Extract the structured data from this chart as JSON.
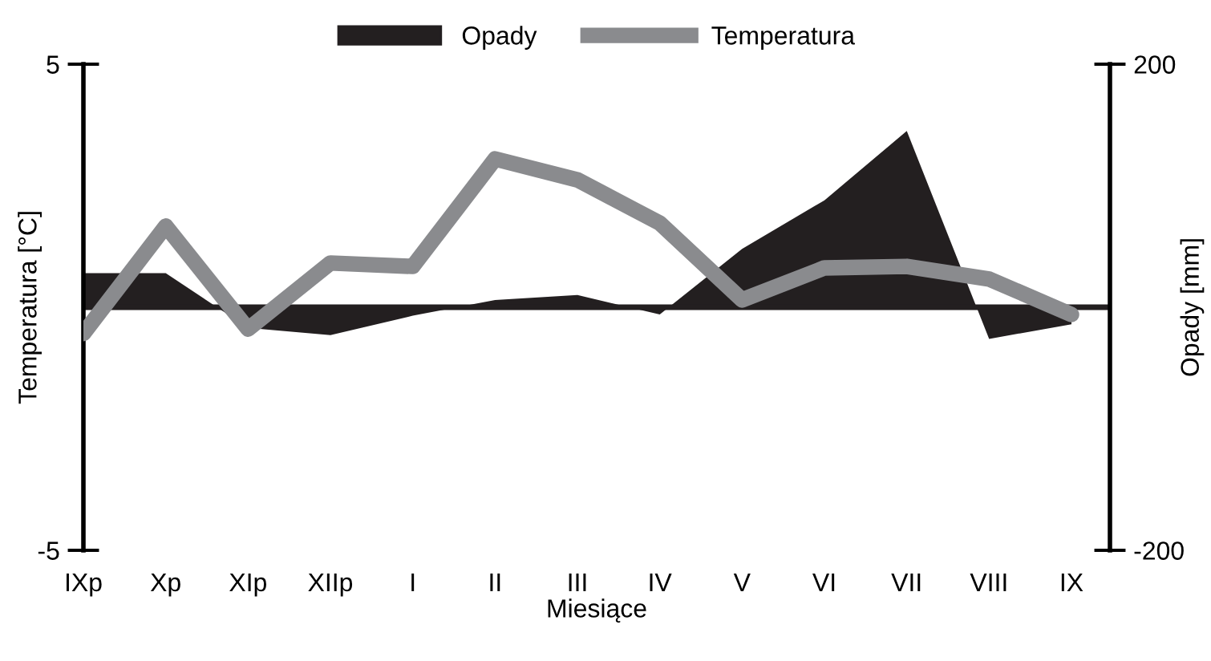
{
  "chart_data": {
    "type": "line",
    "xlabel": "Miesiące",
    "ylabel": "Temperatura [°C]",
    "y2label": "Opady [mm]",
    "categories": [
      "IXp",
      "Xp",
      "XIp",
      "XIIp",
      "I",
      "II",
      "III",
      "IV",
      "V",
      "VI",
      "VII",
      "VIII",
      "IX"
    ],
    "series": [
      {
        "name": "Opady",
        "type": "area",
        "axis": "y2",
        "color": "#231f20",
        "values": [
          28,
          28,
          -17,
          -23,
          -7,
          6,
          10,
          -6,
          48,
          88,
          145,
          -26,
          -14
        ]
      },
      {
        "name": "Temperatura",
        "color": "#8a8b8e",
        "values": [
          -0.54,
          1.67,
          -0.45,
          0.91,
          0.84,
          3.05,
          2.62,
          1.73,
          0.15,
          0.81,
          0.84,
          0.58,
          -0.15
        ]
      }
    ],
    "ylim": [
      -5,
      5
    ],
    "yticks": [
      -5,
      5
    ],
    "y2lim": [
      -200,
      200
    ],
    "y2ticks": [
      -200,
      200
    ],
    "ref_lines": [
      {
        "axis": "y2",
        "value": 0,
        "color": "#231f20"
      }
    ],
    "grid": false,
    "legend": "top",
    "marker": "none",
    "line_style": "solid"
  }
}
